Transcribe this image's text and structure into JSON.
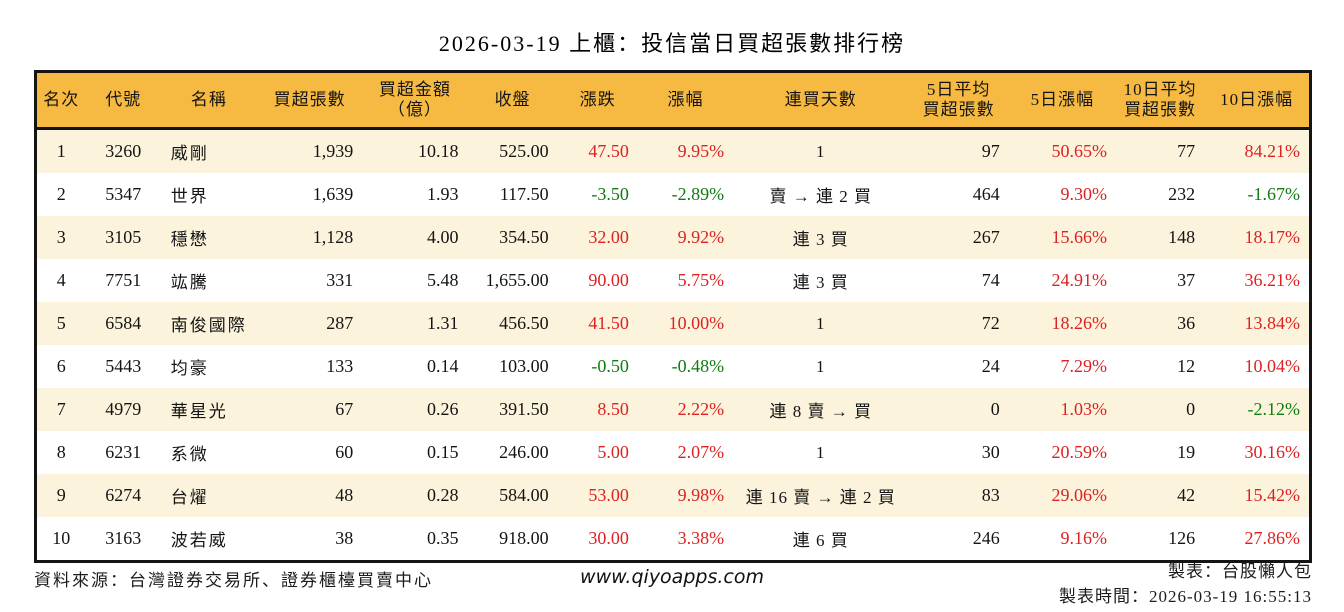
{
  "title": "2026-03-19 上櫃：投信當日買超張數排行榜",
  "colors": {
    "up_red": "#dd2222",
    "down_green": "#0e7c10",
    "header_bg": "#f6ba42",
    "row_stripe": "#fcf3dc",
    "border": "#141414"
  },
  "table": {
    "columns": [
      {
        "key": "rank",
        "label": "名次"
      },
      {
        "key": "code",
        "label": "代號"
      },
      {
        "key": "name",
        "label": "名稱"
      },
      {
        "key": "net-buy-volume",
        "label": "買超張數"
      },
      {
        "key": "net-buy-amount",
        "label": "買超金額\n（億）"
      },
      {
        "key": "close",
        "label": "收盤"
      },
      {
        "key": "change",
        "label": "漲跌",
        "signed": true
      },
      {
        "key": "change-pct",
        "label": "漲幅",
        "signed": true
      },
      {
        "key": "consecutive-days",
        "label": "連買天數"
      },
      {
        "key": "avg5-volume",
        "label": "5日平均\n買超張數"
      },
      {
        "key": "pct5",
        "label": "5日漲幅",
        "signed": true
      },
      {
        "key": "avg10-volume",
        "label": "10日平均\n買超張數"
      },
      {
        "key": "pct10",
        "label": "10日漲幅",
        "signed": true
      }
    ],
    "rows": [
      [
        "1",
        "3260",
        "威剛",
        "1,939",
        "10.18",
        "525.00",
        "47.50",
        "9.95%",
        "1",
        "97",
        "50.65%",
        "77",
        "84.21%"
      ],
      [
        "2",
        "5347",
        "世界",
        "1,639",
        "1.93",
        "117.50",
        "-3.50",
        "-2.89%",
        "賣 → 連 2 買",
        "464",
        "9.30%",
        "232",
        "-1.67%"
      ],
      [
        "3",
        "3105",
        "穩懋",
        "1,128",
        "4.00",
        "354.50",
        "32.00",
        "9.92%",
        "連 3 買",
        "267",
        "15.66%",
        "148",
        "18.17%"
      ],
      [
        "4",
        "7751",
        "竑騰",
        "331",
        "5.48",
        "1,655.00",
        "90.00",
        "5.75%",
        "連 3 買",
        "74",
        "24.91%",
        "37",
        "36.21%"
      ],
      [
        "5",
        "6584",
        "南俊國際",
        "287",
        "1.31",
        "456.50",
        "41.50",
        "10.00%",
        "1",
        "72",
        "18.26%",
        "36",
        "13.84%"
      ],
      [
        "6",
        "5443",
        "均豪",
        "133",
        "0.14",
        "103.00",
        "-0.50",
        "-0.48%",
        "1",
        "24",
        "7.29%",
        "12",
        "10.04%"
      ],
      [
        "7",
        "4979",
        "華星光",
        "67",
        "0.26",
        "391.50",
        "8.50",
        "2.22%",
        "連 8 賣 → 買",
        "0",
        "1.03%",
        "0",
        "-2.12%"
      ],
      [
        "8",
        "6231",
        "系微",
        "60",
        "0.15",
        "246.00",
        "5.00",
        "2.07%",
        "1",
        "30",
        "20.59%",
        "19",
        "30.16%"
      ],
      [
        "9",
        "6274",
        "台燿",
        "48",
        "0.28",
        "584.00",
        "53.00",
        "9.98%",
        "連 16 賣 → 連 2 買",
        "83",
        "29.06%",
        "42",
        "15.42%"
      ],
      [
        "10",
        "3163",
        "波若威",
        "38",
        "0.35",
        "918.00",
        "30.00",
        "3.38%",
        "連 6 買",
        "246",
        "9.16%",
        "126",
        "27.86%"
      ]
    ]
  },
  "footer": {
    "source": "資料來源：台灣證券交易所、證券櫃檯買賣中心",
    "website": "www.qiyoapps.com",
    "author": "製表：台股懶人包",
    "timestamp": "製表時間：2026-03-19 16:55:13"
  }
}
